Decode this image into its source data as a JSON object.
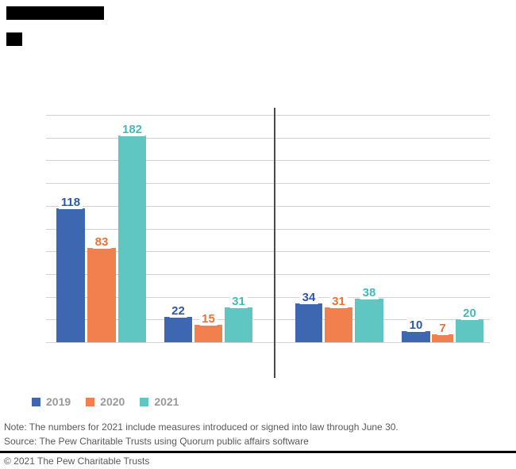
{
  "chart_data": {
    "type": "bar",
    "categories": [
      "",
      "",
      "",
      ""
    ],
    "series": [
      {
        "name": "2019",
        "color": "#3E67B1",
        "label_color": "#2E58A8",
        "values": [
          118,
          22,
          34,
          10
        ]
      },
      {
        "name": "2020",
        "color": "#F2804E",
        "label_color": "#ED7134",
        "values": [
          83,
          15,
          31,
          7
        ]
      },
      {
        "name": "2021",
        "color": "#5FC6C2",
        "label_color": "#3FBCB9",
        "values": [
          182,
          31,
          38,
          20
        ]
      }
    ],
    "y_axis": {
      "min": 0,
      "max": 200,
      "gridline_step": 20,
      "tick_labels_visible": false
    },
    "grid": true,
    "bar_value_labels": true,
    "separator_after_group": 2,
    "legend_position": "bottom-left"
  },
  "legend": {
    "items": [
      {
        "label": "2019",
        "color": "#3E67B1"
      },
      {
        "label": "2020",
        "color": "#F2804E"
      },
      {
        "label": "2021",
        "color": "#5FC6C2"
      }
    ]
  },
  "footer": {
    "note": "Note: The numbers for 2021 include measures introduced or signed into law through June 30.",
    "source": "Source: The Pew Charitable Trusts using Quorum public affairs software",
    "copyright": "© 2021 The Pew Charitable Trusts"
  },
  "colors": {
    "gridline": "#D2D2D2",
    "separator": "#4A4A4A",
    "footer_text": "#58595B",
    "legend_text": "#97999C",
    "redaction": "#000000"
  }
}
